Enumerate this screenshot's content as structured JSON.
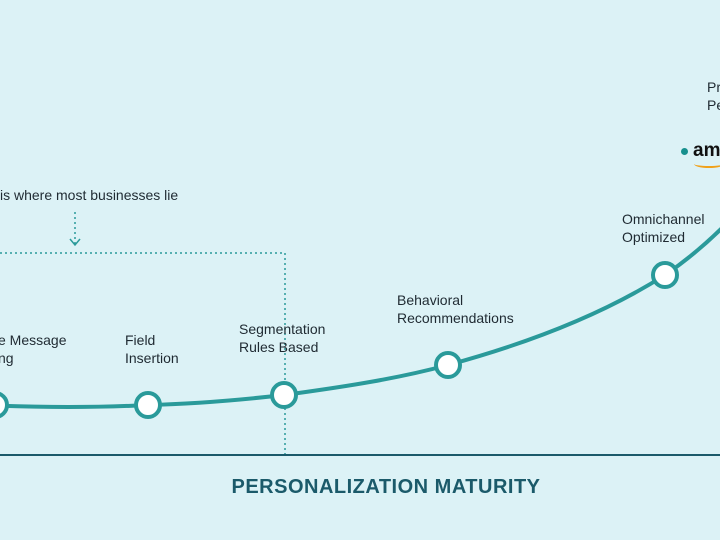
{
  "callout": {
    "text": "is is where most businesses lie"
  },
  "stages": [
    {
      "line1": "e Message",
      "line2": "ng"
    },
    {
      "line1": "Field",
      "line2": "Insertion"
    },
    {
      "line1": "Segmentation",
      "line2": "Rules Based"
    },
    {
      "line1": "Behavioral",
      "line2": "Recommendations"
    },
    {
      "line1": "Omnichannel",
      "line2": "Optimized"
    },
    {
      "line1": "Pr",
      "line2": "Pe"
    }
  ],
  "logo": {
    "text": "am"
  },
  "axis": {
    "title": "PERSONALIZATION MATURITY"
  },
  "colors": {
    "background": "#dcf2f6",
    "curve": "#2a9a9a",
    "axis": "#1b5a6a",
    "callout": "#2a9a9a",
    "text": "#1f2a32",
    "logo_accent": "#f0a11a"
  }
}
